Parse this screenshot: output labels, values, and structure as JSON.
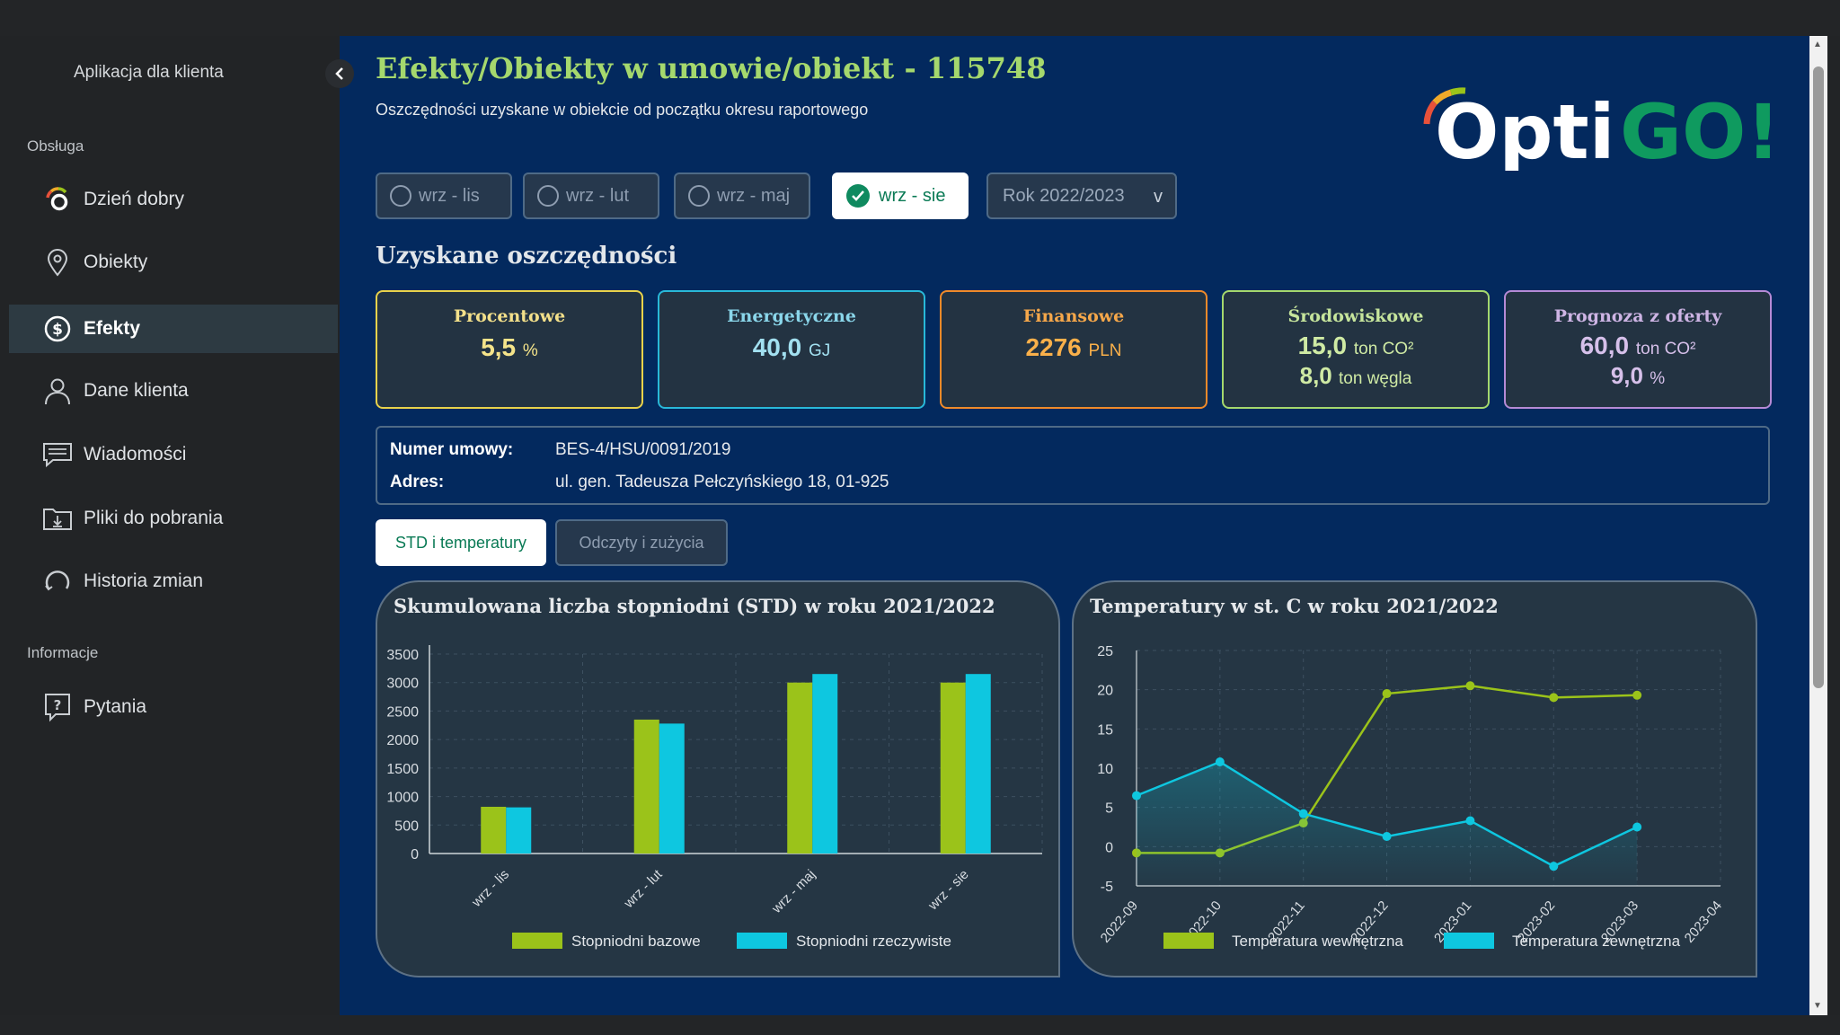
{
  "sidebar": {
    "app_title": "Aplikacja dla klienta",
    "section_service": "Obsługa",
    "section_info": "Informacje",
    "items": [
      {
        "label": "Dzień dobry",
        "icon": "gauge-icon"
      },
      {
        "label": "Obiekty",
        "icon": "map-pin-icon"
      },
      {
        "label": "Efekty",
        "icon": "dollar-icon"
      },
      {
        "label": "Dane klienta",
        "icon": "user-icon"
      },
      {
        "label": "Wiadomości",
        "icon": "message-icon"
      },
      {
        "label": "Pliki do pobrania",
        "icon": "folder-download-icon"
      },
      {
        "label": "Historia zmian",
        "icon": "history-icon"
      }
    ],
    "info_items": [
      {
        "label": "Pytania",
        "icon": "question-icon"
      }
    ]
  },
  "header": {
    "title": "Efekty/Obiekty w umowie/obiekt - 115748",
    "subtitle": "Oszczędności uzyskane w obiekcie od początku okresu raportowego",
    "logo_text_1": "Opti",
    "logo_text_2": "GO!"
  },
  "periods": [
    {
      "label": "wrz - lis",
      "selected": false
    },
    {
      "label": "wrz - lut",
      "selected": false
    },
    {
      "label": "wrz - maj",
      "selected": false
    },
    {
      "label": "wrz - sie",
      "selected": true
    }
  ],
  "year_select": {
    "value": "Rok 2022/2023",
    "chevron": "v"
  },
  "savings": {
    "title": "Uzyskane oszczędności",
    "cards": [
      {
        "title": "Procentowe",
        "value": "5,5",
        "unit": "%",
        "value2": "",
        "unit2": "",
        "color": "#e9d24b"
      },
      {
        "title": "Energetyczne",
        "value": "40,0",
        "unit": "GJ",
        "value2": "",
        "unit2": "",
        "color": "#29b8d8"
      },
      {
        "title": "Finansowe",
        "value": "2276",
        "unit": "PLN",
        "value2": "",
        "unit2": "",
        "color": "#f08a2a"
      },
      {
        "title": "Środowiskowe",
        "value": "15,0",
        "unit": "ton CO²",
        "value2": "8,0",
        "unit2": "ton węgla",
        "color": "#a5d86d"
      },
      {
        "title": "Prognoza z oferty",
        "value": "60,0",
        "unit": "ton CO²",
        "value2": "9,0",
        "unit2": "%",
        "color": "#b58ad6"
      }
    ]
  },
  "contract": {
    "number_label": "Numer umowy:",
    "number_value": "BES-4/HSU/0091/2019",
    "address_label": "Adres:",
    "address_value": "ul. gen. Tadeusza Pełczyńskiego 18, 01-925"
  },
  "tabs": {
    "active": "STD i temperatury",
    "inactive": "Odczyty  i zużycia"
  },
  "colors": {
    "green": "#9bc31a",
    "cyan": "#0ec7e0",
    "main_bg": "#03295e"
  },
  "chart_data": [
    {
      "type": "bar",
      "title": "Skumulowana liczba stopniodni (STD) w roku 2021/2022",
      "categories": [
        "wrz - lis",
        "wrz - lut",
        "wrz - maj",
        "wrz - sie"
      ],
      "series": [
        {
          "name": "Stopniodni bazowe",
          "values": [
            820,
            2350,
            3000,
            3000
          ]
        },
        {
          "name": "Stopniodni rzeczywiste",
          "values": [
            810,
            2280,
            3150,
            3150
          ]
        }
      ],
      "yticks": [
        0,
        500,
        1000,
        1500,
        2000,
        2500,
        3000,
        3500
      ],
      "ylim": [
        0,
        3500
      ],
      "legend": "bottom"
    },
    {
      "type": "line",
      "title": "Temperatury w st. C w roku 2021/2022",
      "x": [
        "2022-09",
        "2022-10",
        "2022-11",
        "2022-12",
        "2023-01",
        "2023-02",
        "2023-03",
        "2023-04"
      ],
      "series": [
        {
          "name": "Temperatura wewnętrzna",
          "values": [
            -0.8,
            -0.8,
            3.0,
            19.5,
            20.5,
            19.0,
            19.3,
            null
          ]
        },
        {
          "name": "Temperatura zewnętrzna",
          "values": [
            6.5,
            10.8,
            4.2,
            1.3,
            3.3,
            -2.5,
            2.5,
            null
          ]
        }
      ],
      "yticks": [
        -5,
        0,
        5,
        10,
        15,
        20,
        25
      ],
      "ylim": [
        -5,
        25
      ],
      "legend": "bottom"
    }
  ]
}
